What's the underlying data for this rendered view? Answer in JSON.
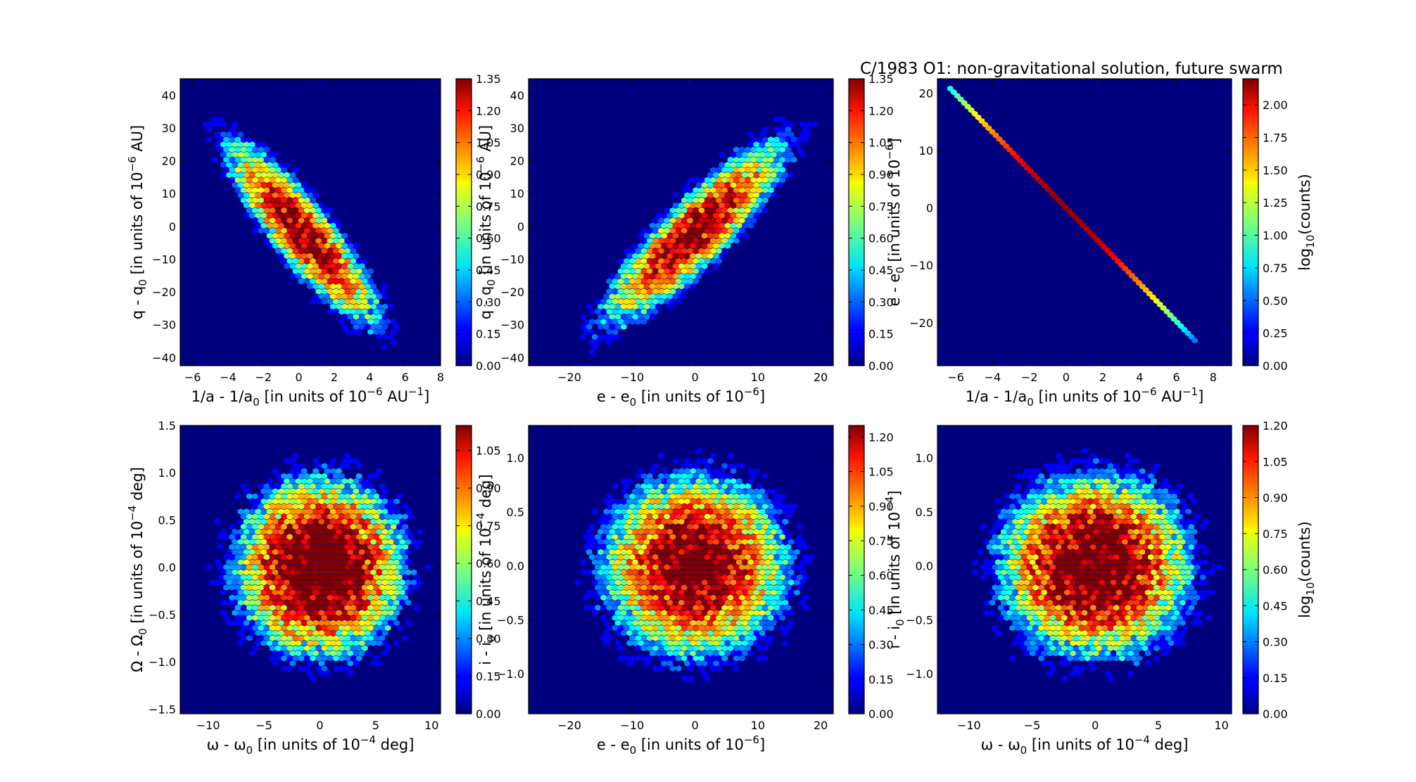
{
  "figure_title": "C/1983 O1:  non-gravitational solution, future swarm",
  "colorbar_label": {
    "pre": "log",
    "sub": "10",
    "post": "(counts)"
  },
  "colormap": "jet",
  "background_color": "#00007f",
  "chart_data": [
    {
      "type": "heatmap",
      "subtype": "hexbin",
      "id": "p1",
      "xlabel": {
        "pre": "1/a - 1/a",
        "sub": "0",
        "mid": " [in units of 10",
        "sup": "-6",
        "post": " AU",
        "sup2": "-1",
        "end": "]"
      },
      "ylabel": {
        "pre": "q - q",
        "sub": "0",
        "mid": "  [in units of 10",
        "sup": "-6",
        "post": " AU]"
      },
      "xlim": [
        -6.7,
        8.0
      ],
      "ylim": [
        -42.5,
        45.0
      ],
      "xticks": [
        -6,
        -4,
        -2,
        0,
        2,
        4,
        6,
        8
      ],
      "yticks": [
        -40,
        -30,
        -20,
        -10,
        0,
        10,
        20,
        30,
        40
      ],
      "xtick_labels": [
        "−6",
        "−4",
        "−2",
        "0",
        "2",
        "4",
        "6",
        "8"
      ],
      "ytick_labels": [
        "−40",
        "−30",
        "−20",
        "−10",
        "0",
        "10",
        "20",
        "30",
        "40"
      ],
      "distribution": {
        "mean": [
          0.2,
          -2.0
        ],
        "sd": [
          2.1,
          13.5
        ],
        "correlation": -0.88,
        "count_range": [
          0.0,
          1.35
        ]
      },
      "colorbar": {
        "min": 0.0,
        "max": 1.35,
        "ticks": [
          "0.00",
          "0.15",
          "0.30",
          "0.45",
          "0.60",
          "0.75",
          "0.90",
          "1.05",
          "1.20",
          "1.35"
        ]
      }
    },
    {
      "type": "heatmap",
      "subtype": "hexbin",
      "id": "p2",
      "xlabel": {
        "pre": "e - e",
        "sub": "0",
        "mid": " [in units of 10",
        "sup": "-6",
        "post": "]"
      },
      "ylabel": {
        "pre": "q - q",
        "sub": "0",
        "mid": "  [in units of 10",
        "sup": "-6",
        "post": " AU]"
      },
      "xlim": [
        -26.5,
        22.0
      ],
      "ylim": [
        -42.5,
        45.0
      ],
      "xticks": [
        -20,
        -10,
        0,
        10,
        20
      ],
      "yticks": [
        -40,
        -30,
        -20,
        -10,
        0,
        10,
        20,
        30,
        40
      ],
      "xtick_labels": [
        "−20",
        "−10",
        "0",
        "10",
        "20"
      ],
      "ytick_labels": [
        "−40",
        "−30",
        "−20",
        "−10",
        "0",
        "10",
        "20",
        "30",
        "40"
      ],
      "distribution": {
        "mean": [
          0.0,
          -2.0
        ],
        "sd": [
          7.0,
          13.5
        ],
        "correlation": 0.88,
        "count_range": [
          0.0,
          1.35
        ]
      },
      "colorbar": {
        "min": 0.0,
        "max": 1.35,
        "ticks": [
          "0.00",
          "0.15",
          "0.30",
          "0.45",
          "0.60",
          "0.75",
          "0.90",
          "1.05",
          "1.20",
          "1.35"
        ]
      }
    },
    {
      "type": "heatmap",
      "subtype": "hexbin",
      "id": "p3",
      "xlabel": {
        "pre": "1/a - 1/a",
        "sub": "0",
        "mid": " [in units of 10",
        "sup": "-6",
        "post": " AU",
        "sup2": "-1",
        "end": "]"
      },
      "ylabel": {
        "pre": "e - e",
        "sub": "0",
        "mid": "  [in units of 10",
        "sup": "-6",
        "post": "]"
      },
      "xlim": [
        -7.0,
        9.0
      ],
      "ylim": [
        -27.5,
        22.5
      ],
      "xticks": [
        -6,
        -4,
        -2,
        0,
        2,
        4,
        6,
        8
      ],
      "yticks": [
        -20,
        -10,
        0,
        10,
        20
      ],
      "xtick_labels": [
        "−6",
        "−4",
        "−2",
        "0",
        "2",
        "4",
        "6",
        "8"
      ],
      "ytick_labels": [
        "−20",
        "−10",
        "0",
        "10",
        "20"
      ],
      "distribution": {
        "line_slope": -3.3,
        "x_range": [
          -6.3,
          7.0
        ],
        "count_range": [
          0.0,
          2.2
        ]
      },
      "colorbar": {
        "min": 0.0,
        "max": 2.2,
        "ticks": [
          "0.00",
          "0.25",
          "0.50",
          "0.75",
          "1.00",
          "1.25",
          "1.50",
          "1.75",
          "2.00"
        ]
      },
      "show_colorbar_label": true
    },
    {
      "type": "heatmap",
      "subtype": "hexbin",
      "id": "p4",
      "xlabel": {
        "pre": "ω - ω",
        "sub": "0",
        "mid": " [in units of 10",
        "sup": "-4",
        "post": "  deg]"
      },
      "ylabel": {
        "pre": "Ω - Ω",
        "sub": "0",
        "mid": " [in units of 10",
        "sup": "-4",
        "post": "  deg]"
      },
      "xlim": [
        -12.5,
        10.8
      ],
      "ylim": [
        -1.55,
        1.5
      ],
      "xticks": [
        -10,
        -5,
        0,
        5,
        10
      ],
      "yticks": [
        -1.5,
        -1.0,
        -0.5,
        0.0,
        0.5,
        1.0,
        1.5
      ],
      "xtick_labels": [
        "−10",
        "−5",
        "0",
        "5",
        "10"
      ],
      "ytick_labels": [
        "−1.5",
        "−1.0",
        "−0.5",
        "0.0",
        "0.5",
        "1.0",
        "1.5"
      ],
      "distribution": {
        "mean": [
          0.0,
          0.0
        ],
        "sd": [
          3.6,
          0.45
        ],
        "correlation": 0.0,
        "count_range": [
          0.0,
          1.15
        ]
      },
      "colorbar": {
        "min": 0.0,
        "max": 1.15,
        "ticks": [
          "0.00",
          "0.15",
          "0.30",
          "0.45",
          "0.60",
          "0.75",
          "0.90",
          "1.05"
        ]
      }
    },
    {
      "type": "heatmap",
      "subtype": "hexbin",
      "id": "p5",
      "xlabel": {
        "pre": "e - e",
        "sub": "0",
        "mid": " [in units of 10",
        "sup": "-6",
        "post": "]"
      },
      "ylabel": {
        "pre": "i - i",
        "sub": "0",
        "mid": "  [in units of 10",
        "sup": "-4",
        "post": "  deg]"
      },
      "xlim": [
        -26.5,
        22.0
      ],
      "ylim": [
        -1.37,
        1.3
      ],
      "xticks": [
        -20,
        -10,
        0,
        10,
        20
      ],
      "yticks": [
        -1.0,
        -0.5,
        0.0,
        0.5,
        1.0
      ],
      "xtick_labels": [
        "−20",
        "−10",
        "0",
        "10",
        "20"
      ],
      "ytick_labels": [
        "−1.0",
        "−0.5",
        "0.0",
        "0.5",
        "1.0"
      ],
      "distribution": {
        "mean": [
          0.0,
          0.0
        ],
        "sd": [
          7.0,
          0.4
        ],
        "correlation": 0.0,
        "count_range": [
          0.0,
          1.25
        ]
      },
      "colorbar": {
        "min": 0.0,
        "max": 1.25,
        "ticks": [
          "0.00",
          "0.15",
          "0.30",
          "0.45",
          "0.60",
          "0.75",
          "0.90",
          "1.05",
          "1.20"
        ]
      }
    },
    {
      "type": "heatmap",
      "subtype": "hexbin",
      "id": "p6",
      "xlabel": {
        "pre": "ω - ω",
        "sub": "0",
        "mid": " [in units of 10",
        "sup": "-4",
        "post": "  deg]"
      },
      "ylabel": {
        "pre": "i - i",
        "sub": "0",
        "mid": "  [in units of 10",
        "sup": "-4",
        "post": "]"
      },
      "xlim": [
        -12.5,
        10.8
      ],
      "ylim": [
        -1.37,
        1.3
      ],
      "xticks": [
        -10,
        -5,
        0,
        5,
        10
      ],
      "yticks": [
        -1.0,
        -0.5,
        0.0,
        0.5,
        1.0
      ],
      "xtick_labels": [
        "−10",
        "−5",
        "0",
        "5",
        "10"
      ],
      "ytick_labels": [
        "−1.0",
        "−0.5",
        "0.0",
        "0.5",
        "1.0"
      ],
      "distribution": {
        "mean": [
          0.0,
          0.0
        ],
        "sd": [
          3.6,
          0.4
        ],
        "correlation": 0.0,
        "count_range": [
          0.0,
          1.2
        ]
      },
      "colorbar": {
        "min": 0.0,
        "max": 1.2,
        "ticks": [
          "0.00",
          "0.15",
          "0.30",
          "0.45",
          "0.60",
          "0.75",
          "0.90",
          "1.05",
          "1.20"
        ]
      },
      "show_colorbar_label": true
    }
  ]
}
